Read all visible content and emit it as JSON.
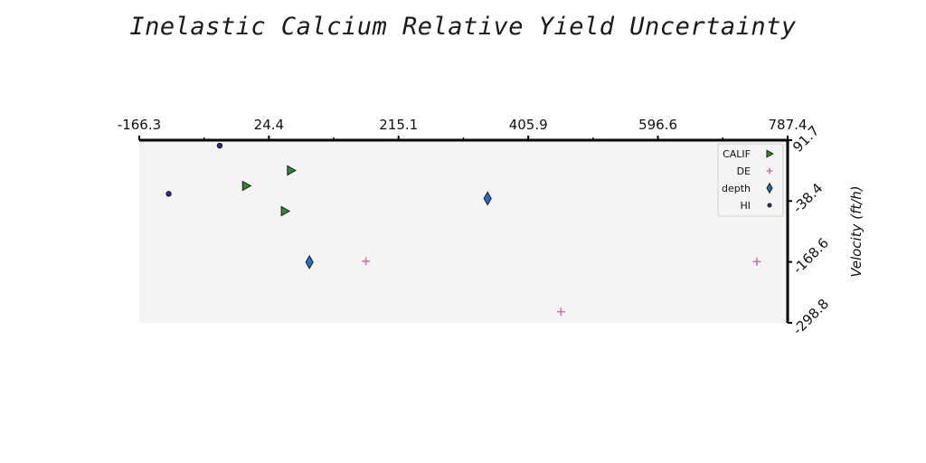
{
  "chart_data": {
    "type": "scatter",
    "title": "Inelastic Calcium Relative Yield Uncertainty",
    "xlabel": "",
    "ylabel": "Velocity (ft/h)",
    "xlim": [
      -166.3,
      787.4
    ],
    "ylim": [
      -298.8,
      91.7
    ],
    "x_ticks": [
      "-166.3",
      "24.4",
      "215.1",
      "405.9",
      "596.6",
      "787.4"
    ],
    "y_ticks": [
      "91.7",
      "-38.4",
      "-168.6",
      "-298.8"
    ],
    "x_axis_position": "top",
    "y_axis_position": "right",
    "grid": false,
    "legend_position": "top-right",
    "series": [
      {
        "name": "CALIF",
        "marker": "triangle-right",
        "color": "#2e8b2e",
        "points": [
          [
            57,
            27
          ],
          [
            -9,
            -6
          ],
          [
            48,
            -60
          ]
        ]
      },
      {
        "name": "DE",
        "marker": "plus",
        "color": "#c77ba8",
        "points": [
          [
            167,
            -167
          ],
          [
            454,
            -275
          ],
          [
            742,
            -168
          ]
        ]
      },
      {
        "name": "depth",
        "marker": "diamond",
        "color": "#1f6fd1",
        "points": [
          [
            346,
            -33
          ],
          [
            84,
            -169
          ]
        ]
      },
      {
        "name": "HI",
        "marker": "circle",
        "color": "#2b2d7a",
        "points": [
          [
            -48,
            80
          ],
          [
            -123,
            -23
          ]
        ]
      }
    ]
  }
}
